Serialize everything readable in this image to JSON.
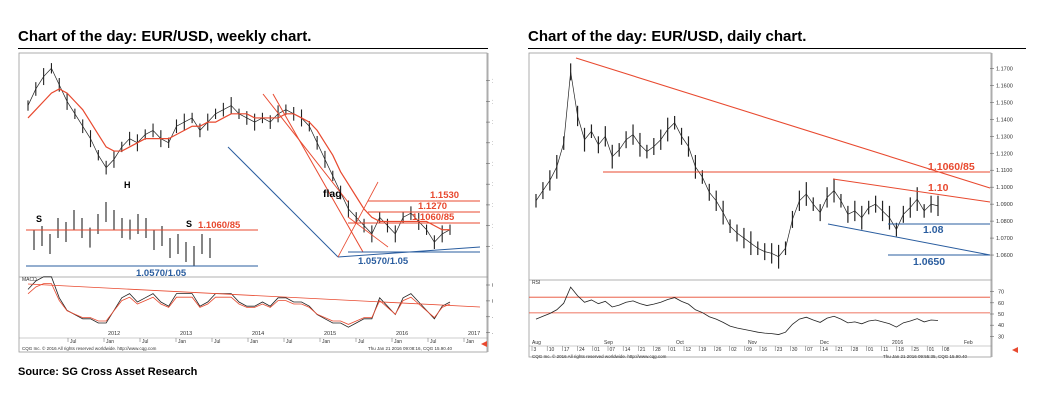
{
  "source": "Source: SG Cross Asset Research",
  "chart_data": [
    {
      "type": "line",
      "title": "Chart of the day: EUR/USD, weekly chart.",
      "price_axis": {
        "ylim": [
          1.0,
          1.5
        ],
        "ticks": [
          "1.4500",
          "1.4000",
          "1.3500",
          "1.3000",
          "1.2500",
          "1.2000",
          "1.1500",
          "1.1000",
          "1.0500"
        ]
      },
      "time_axis": {
        "labels": [
          "2012",
          "2013",
          "2014",
          "2015",
          "2016",
          "2017"
        ],
        "sublabels": [
          "Jul",
          "Jan",
          "Jul",
          "Jan",
          "Jul",
          "Jan",
          "Jul",
          "Jan",
          "Jul",
          "Jan",
          "Jul",
          "Jan"
        ]
      },
      "levels": [
        "1.1530",
        "1.1270",
        "1.1060/85",
        "1.1060/85",
        "1.0570/1.05"
      ],
      "annotations": [
        "S",
        "H",
        "S",
        "flag"
      ],
      "series": [
        {
          "values": [
            1.39,
            1.43,
            1.46,
            1.48,
            1.44,
            1.4,
            1.37,
            1.34,
            1.31,
            1.27,
            1.24,
            1.26,
            1.29,
            1.31,
            1.3,
            1.32,
            1.33,
            1.31,
            1.3,
            1.34,
            1.35,
            1.36,
            1.33,
            1.35,
            1.37,
            1.38,
            1.39,
            1.37,
            1.36,
            1.35,
            1.36,
            1.35,
            1.37,
            1.38,
            1.37,
            1.36,
            1.34,
            1.3,
            1.26,
            1.22,
            1.18,
            1.14,
            1.12,
            1.1,
            1.08,
            1.12,
            1.1,
            1.08,
            1.12,
            1.13,
            1.11,
            1.09,
            1.06,
            1.08,
            1.09
          ]
        },
        {
          "values": [
            1.36,
            1.38,
            1.4,
            1.42,
            1.43,
            1.42,
            1.4,
            1.38,
            1.35,
            1.32,
            1.29,
            1.28,
            1.28,
            1.29,
            1.3,
            1.31,
            1.31,
            1.31,
            1.31,
            1.32,
            1.33,
            1.34,
            1.34,
            1.35,
            1.35,
            1.36,
            1.37,
            1.37,
            1.37,
            1.36,
            1.36,
            1.36,
            1.36,
            1.37,
            1.37,
            1.36,
            1.35,
            1.33,
            1.3,
            1.27,
            1.23,
            1.2,
            1.17,
            1.14,
            1.12,
            1.11,
            1.11,
            1.11,
            1.11,
            1.11,
            1.11,
            1.11,
            1.1,
            1.09,
            1.09
          ]
        }
      ],
      "macd": {
        "label": "MACD",
        "ticks": [
          "0.025",
          "0.000",
          "-0.025",
          "-0.050"
        ]
      },
      "footer": [
        "CQG Inc. © 2016 All rights reserved worldwide. http://www.cqg.com",
        "Thu Jan 21 2016 09:08:16, CQG 15.90.40"
      ]
    },
    {
      "type": "line",
      "title": "Chart of the day: EUR/USD, daily chart.",
      "price_axis": {
        "ylim": [
          1.05,
          1.175
        ],
        "ticks": [
          "1.1700",
          "1.1600",
          "1.1500",
          "1.1400",
          "1.1300",
          "1.1200",
          "1.1100",
          "1.1000",
          "1.0900",
          "1.0800",
          "1.0700",
          "1.0600"
        ]
      },
      "time_axis": {
        "months": [
          "Aug",
          "Sep",
          "Oct",
          "Nov",
          "Dec",
          "2016",
          "Feb"
        ],
        "days": [
          "3",
          "10",
          "17",
          "24",
          "01",
          "07",
          "14",
          "21",
          "28",
          "01",
          "12",
          "19",
          "26",
          "02",
          "09",
          "16",
          "23",
          "30",
          "07",
          "14",
          "21",
          "28",
          "01",
          "11",
          "18",
          "25",
          "01",
          "08"
        ]
      },
      "levels": [
        "1.1060/85",
        "1.10",
        "1.08",
        "1.0650"
      ],
      "series": [
        {
          "values": [
            1.092,
            1.098,
            1.104,
            1.112,
            1.126,
            1.168,
            1.142,
            1.128,
            1.133,
            1.125,
            1.13,
            1.118,
            1.122,
            1.128,
            1.131,
            1.125,
            1.121,
            1.124,
            1.128,
            1.134,
            1.138,
            1.13,
            1.124,
            1.112,
            1.106,
            1.097,
            1.092,
            1.085,
            1.077,
            1.073,
            1.07,
            1.067,
            1.064,
            1.062,
            1.061,
            1.059,
            1.064,
            1.081,
            1.092,
            1.096,
            1.09,
            1.085,
            1.094,
            1.098,
            1.092,
            1.084,
            1.086,
            1.082,
            1.088,
            1.09,
            1.086,
            1.082,
            1.075,
            1.084,
            1.088,
            1.093,
            1.086,
            1.09,
            1.089
          ]
        }
      ],
      "rsi": {
        "label": "RSI",
        "ticks": [
          "70",
          "60",
          "50",
          "40",
          "30"
        ],
        "levels": [
          65,
          51
        ]
      },
      "footer": [
        "CQG Inc. © 2016 All rights reserved worldwide. http://www.cqg.com",
        "Thu Jan 21 2016 09:55:35, CQG 15.90.40"
      ]
    }
  ]
}
